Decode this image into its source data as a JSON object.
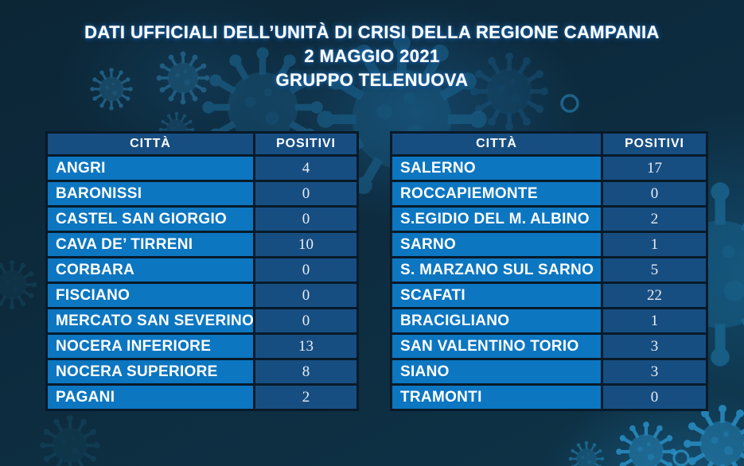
{
  "header": {
    "title": "DATI UFFICIALI DELL’UNITÀ DI CRISI DELLA REGIONE CAMPANIA",
    "date": "2 MAGGIO 2021",
    "group": "GRUPPO TELENUOVA"
  },
  "chart_data": [
    {
      "type": "table",
      "title": "Positivi per città — tabella sinistra",
      "columns": {
        "city": "CITTÀ",
        "positives": "POSITIVI"
      },
      "rows": [
        {
          "city": "ANGRI",
          "positives": 4
        },
        {
          "city": "BARONISSI",
          "positives": 0
        },
        {
          "city": "CASTEL SAN GIORGIO",
          "positives": 0
        },
        {
          "city": "CAVA DE’ TIRRENI",
          "positives": 10
        },
        {
          "city": "CORBARA",
          "positives": 0
        },
        {
          "city": "FISCIANO",
          "positives": 0
        },
        {
          "city": "MERCATO SAN SEVERINO",
          "positives": 0
        },
        {
          "city": "NOCERA INFERIORE",
          "positives": 13
        },
        {
          "city": "NOCERA SUPERIORE",
          "positives": 8
        },
        {
          "city": "PAGANI",
          "positives": 2
        }
      ]
    },
    {
      "type": "table",
      "title": "Positivi per città — tabella destra",
      "columns": {
        "city": "CITTÀ",
        "positives": "POSITIVI"
      },
      "rows": [
        {
          "city": "SALERNO",
          "positives": 17
        },
        {
          "city": "ROCCAPIEMONTE",
          "positives": 0
        },
        {
          "city": "S.EGIDIO DEL M. ALBINO",
          "positives": 2
        },
        {
          "city": "SARNO",
          "positives": 1
        },
        {
          "city": "S. MARZANO SUL SARNO",
          "positives": 5
        },
        {
          "city": "SCAFATI",
          "positives": 22
        },
        {
          "city": "BRACIGLIANO",
          "positives": 1
        },
        {
          "city": "SAN VALENTINO TORIO",
          "positives": 3
        },
        {
          "city": "SIANO",
          "positives": 3
        },
        {
          "city": "TRAMONTI",
          "positives": 0
        }
      ]
    }
  ],
  "icons": {
    "decoration": "virus-icon"
  },
  "colors": {
    "background": "#0d2b3e",
    "city_cell": "#0c76c1",
    "value_cell": "#174e82",
    "grid": "#081a29",
    "title_text": "#fdfeff",
    "title_glow": "#2482dc",
    "virus_accent": "#2a93cc"
  }
}
